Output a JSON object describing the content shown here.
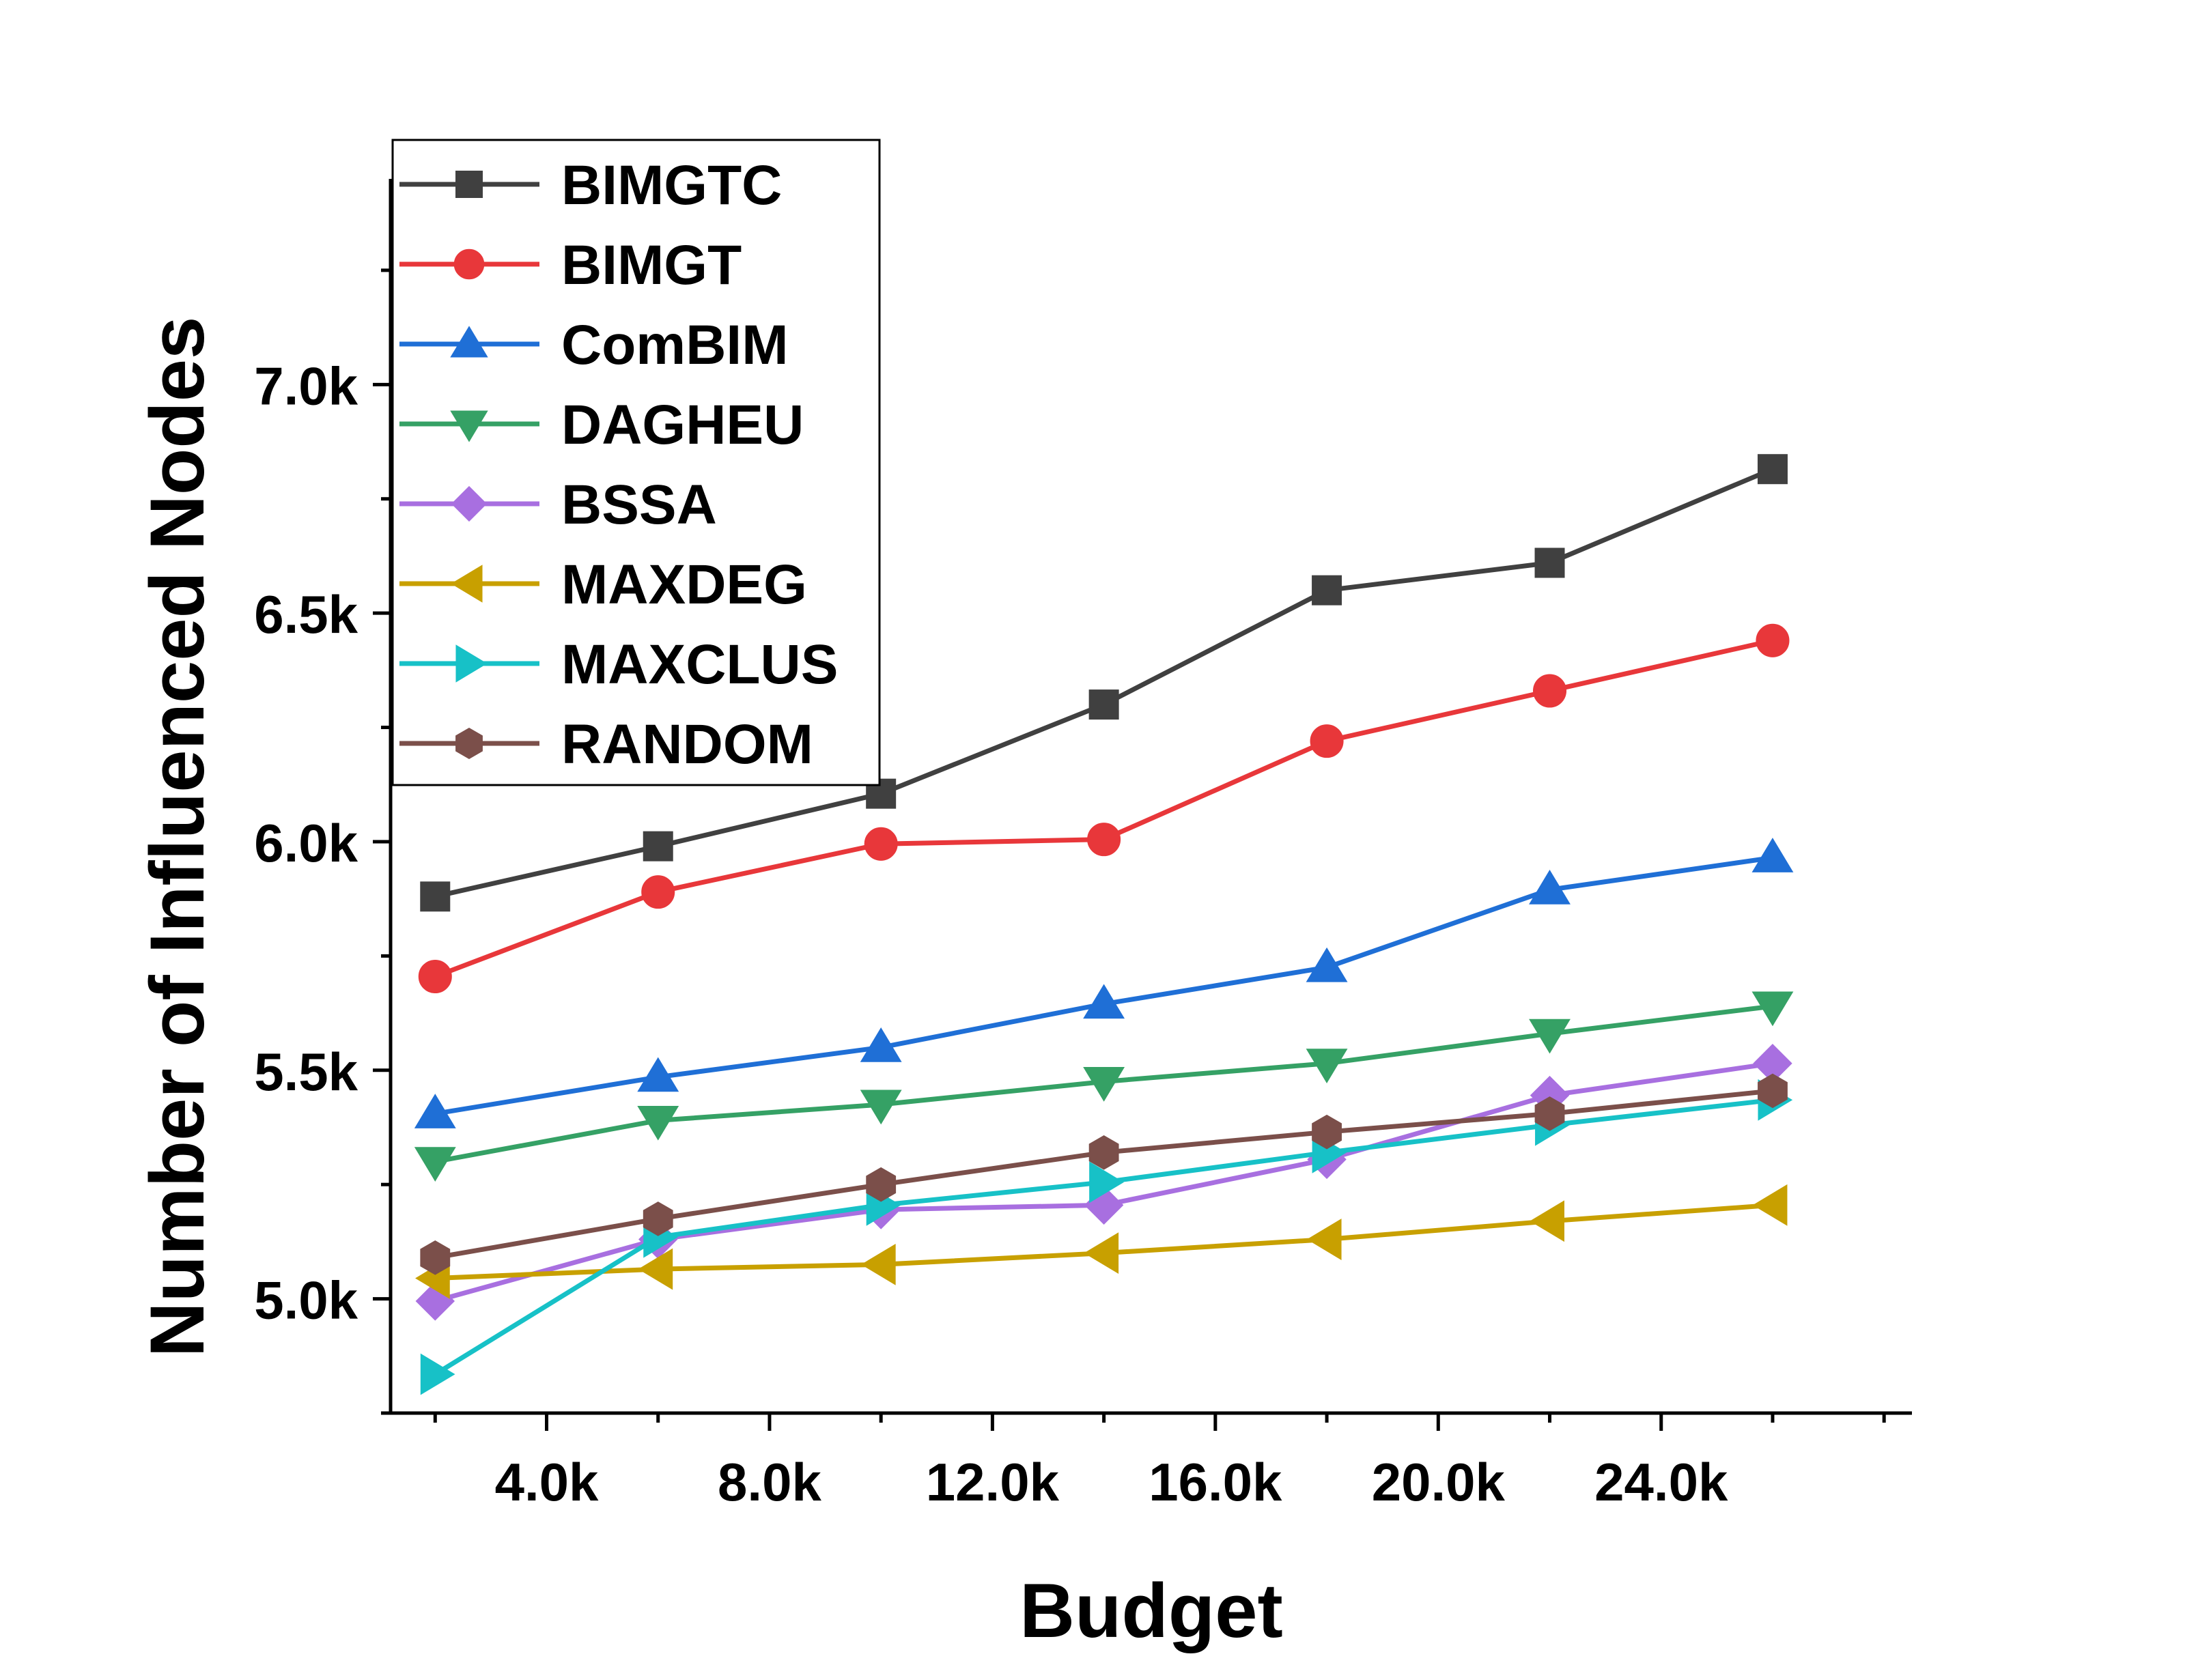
{
  "chart_data": {
    "type": "line",
    "xlabel": "Budget",
    "ylabel": "Number of Influenced Nodes",
    "xlim": [
      1200,
      28500
    ],
    "ylim": [
      4750,
      7450
    ],
    "x": [
      2000,
      6000,
      10000,
      14000,
      18000,
      22000,
      26000
    ],
    "x_ticks": [
      4000,
      8000,
      12000,
      16000,
      20000,
      24000
    ],
    "x_tick_labels": [
      "4.0k",
      "8.0k",
      "12.0k",
      "16.0k",
      "20.0k",
      "24.0k"
    ],
    "y_ticks": [
      5000,
      5500,
      6000,
      6500,
      7000
    ],
    "y_tick_labels": [
      "5.0k",
      "5.5k",
      "6.0k",
      "6.5k",
      "7.0k"
    ],
    "grid": false,
    "legend_position": "top-left",
    "series": [
      {
        "name": "BIMGTC",
        "color": "#404040",
        "marker": "square",
        "values": [
          5880,
          5990,
          6105,
          6300,
          6550,
          6610,
          6815
        ]
      },
      {
        "name": "BIMGT",
        "color": "#e8373a",
        "marker": "circle",
        "values": [
          5705,
          5890,
          5995,
          6005,
          6220,
          6330,
          6440
        ]
      },
      {
        "name": "ComBIM",
        "color": "#1f6fd6",
        "marker": "triangle-up",
        "values": [
          5405,
          5485,
          5550,
          5645,
          5725,
          5895,
          5965
        ]
      },
      {
        "name": "DAGHEU",
        "color": "#35a165",
        "marker": "triangle-down",
        "values": [
          5300,
          5390,
          5425,
          5475,
          5515,
          5580,
          5640
        ]
      },
      {
        "name": "BSSA",
        "color": "#a86fe0",
        "marker": "diamond",
        "values": [
          4995,
          5130,
          5195,
          5205,
          5305,
          5445,
          5515
        ]
      },
      {
        "name": "MAXDEG",
        "color": "#c8a000",
        "marker": "triangle-left",
        "values": [
          5045,
          5065,
          5075,
          5100,
          5130,
          5170,
          5205
        ]
      },
      {
        "name": "MAXCLUS",
        "color": "#17c1c7",
        "marker": "triangle-right",
        "values": [
          4835,
          5135,
          5205,
          5255,
          5320,
          5380,
          5435
        ]
      },
      {
        "name": "RANDOM",
        "color": "#7b4f4a",
        "marker": "hexagon",
        "values": [
          5090,
          5175,
          5250,
          5320,
          5365,
          5405,
          5455
        ]
      }
    ]
  }
}
